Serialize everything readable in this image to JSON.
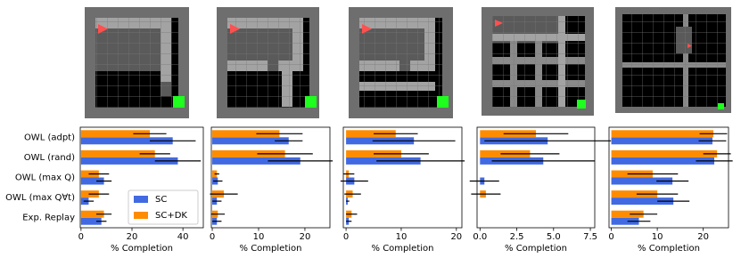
{
  "chart_data": [
    {
      "type": "bar",
      "orientation": "horizontal",
      "categories": [
        "OWL (adpt)",
        "OWL (rand)",
        "OWL (max Q)",
        "OWL (max Q∀t)",
        "Exp. Replay"
      ],
      "xlabel": "% Completion",
      "xlim": [
        -0.3,
        48
      ],
      "xticks": [
        0,
        20,
        40
      ],
      "legend": "lower right",
      "series": [
        {
          "name": "SC",
          "color": "#4169e1",
          "values": [
            36,
            38,
            9,
            3,
            8
          ],
          "errors": [
            9,
            9,
            3,
            2,
            2
          ]
        },
        {
          "name": "SC+DK",
          "color": "#ff8c00",
          "values": [
            27,
            29,
            7,
            7,
            9
          ],
          "errors": [
            6.5,
            6,
            4,
            4,
            3
          ]
        }
      ]
    },
    {
      "type": "bar",
      "orientation": "horizontal",
      "categories": [
        null,
        null,
        null,
        null,
        null
      ],
      "xlabel": "% Completion",
      "xlim": [
        -0.2,
        25.4
      ],
      "xticks": [
        0,
        10,
        20
      ],
      "series": [
        {
          "color": "#4169e1",
          "values": [
            16.5,
            19,
            1.2,
            1,
            1
          ],
          "errors": [
            3,
            7,
            1,
            1,
            1
          ]
        },
        {
          "color": "#ff8c00",
          "values": [
            14.5,
            15.7,
            1,
            2.5,
            1.2
          ],
          "errors": [
            5,
            6,
            0.5,
            3,
            1.5
          ]
        }
      ]
    },
    {
      "type": "bar",
      "orientation": "horizontal",
      "categories": [
        null,
        null,
        null,
        null,
        null
      ],
      "xlabel": "% Completion",
      "xlim": [
        -0.5,
        21
      ],
      "xticks": [
        0,
        10,
        20
      ],
      "series": [
        {
          "color": "#4169e1",
          "values": [
            12.3,
            13.5,
            1.5,
            0.3,
            0.5
          ],
          "errors": [
            7.5,
            8,
            2.5,
            0.3,
            0.5
          ]
        },
        {
          "color": "#ff8c00",
          "values": [
            9,
            10,
            0.5,
            1.2,
            1
          ],
          "errors": [
            4,
            5,
            1,
            1.5,
            1
          ]
        }
      ]
    },
    {
      "type": "bar",
      "orientation": "horizontal",
      "categories": [
        null,
        null,
        null,
        null,
        null
      ],
      "xlabel": "% Completion",
      "xlim": [
        -0.2,
        7.8
      ],
      "xticks": [
        {
          "value": 0,
          "label": "0.0"
        },
        2.5,
        {
          "value": 5,
          "label": "5.0"
        },
        7.5
      ],
      "series": [
        {
          "color": "#4169e1",
          "values": [
            4.6,
            4.3,
            0.3,
            0,
            0
          ],
          "errors": [
            4.3,
            3.5,
            1,
            0,
            0
          ]
        },
        {
          "color": "#ff8c00",
          "values": [
            3.8,
            3.4,
            0,
            0.4,
            0
          ],
          "errors": [
            2.2,
            2,
            0,
            1,
            0
          ]
        }
      ]
    },
    {
      "type": "bar",
      "orientation": "horizontal",
      "categories": [
        null,
        null,
        null,
        null,
        null
      ],
      "xlabel": "% Completion",
      "xlim": [
        -0.5,
        25.5
      ],
      "xticks": [
        0,
        10,
        20
      ],
      "series": [
        {
          "color": "#4169e1",
          "values": [
            22,
            22.4,
            13.3,
            13.5,
            6
          ],
          "errors": [
            3,
            4,
            3.5,
            3.5,
            2.5
          ]
        },
        {
          "color": "#ff8c00",
          "values": [
            22.2,
            23,
            9,
            10,
            7
          ],
          "errors": [
            3,
            3,
            5.5,
            4.5,
            3
          ]
        }
      ]
    }
  ]
}
